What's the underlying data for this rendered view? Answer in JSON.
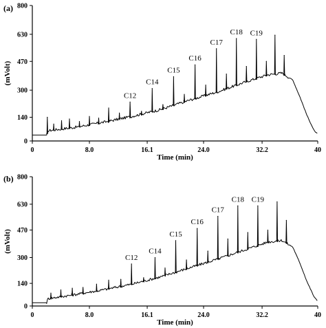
{
  "chart_data": [
    {
      "panel": "(a)",
      "type": "line",
      "xlabel": "Time (min)",
      "ylabel": "(mVolt)",
      "xlim": [
        0,
        40
      ],
      "ylim": [
        0,
        800
      ],
      "xticks": [
        0,
        8.0,
        16.1,
        24.0,
        32.2,
        40
      ],
      "xtick_labels": [
        "0",
        "8.0",
        "16.1",
        "24.0",
        "32.2",
        "40"
      ],
      "yticks": [
        0,
        140,
        300,
        470,
        630,
        800
      ],
      "ytick_labels": [
        "0",
        "140",
        "300",
        "470",
        "630",
        "800"
      ],
      "grid": false,
      "baseline": [
        [
          0,
          35
        ],
        [
          2.0,
          35
        ],
        [
          2.2,
          60
        ],
        [
          6,
          80
        ],
        [
          10,
          110
        ],
        [
          14,
          145
        ],
        [
          18,
          185
        ],
        [
          22,
          240
        ],
        [
          26,
          290
        ],
        [
          30,
          350
        ],
        [
          33,
          390
        ],
        [
          35,
          400
        ],
        [
          36.5,
          360
        ],
        [
          37.5,
          260
        ],
        [
          38.5,
          150
        ],
        [
          39.5,
          60
        ],
        [
          40,
          40
        ]
      ],
      "peaks": [
        {
          "x": 2.1,
          "y": 140
        },
        {
          "x": 3.0,
          "y": 100
        },
        {
          "x": 4.1,
          "y": 120
        },
        {
          "x": 5.2,
          "y": 130
        },
        {
          "x": 6.6,
          "y": 115
        },
        {
          "x": 8.0,
          "y": 145
        },
        {
          "x": 9.3,
          "y": 135
        },
        {
          "x": 10.7,
          "y": 195
        },
        {
          "x": 12.2,
          "y": 165
        },
        {
          "x": 13.7,
          "y": 230
        },
        {
          "x": 15.3,
          "y": 175
        },
        {
          "x": 16.8,
          "y": 310
        },
        {
          "x": 18.3,
          "y": 215
        },
        {
          "x": 19.8,
          "y": 380
        },
        {
          "x": 21.3,
          "y": 275
        },
        {
          "x": 22.8,
          "y": 450
        },
        {
          "x": 24.3,
          "y": 330
        },
        {
          "x": 25.8,
          "y": 545
        },
        {
          "x": 27.2,
          "y": 395
        },
        {
          "x": 28.6,
          "y": 605
        },
        {
          "x": 30.0,
          "y": 440
        },
        {
          "x": 31.4,
          "y": 600
        },
        {
          "x": 32.8,
          "y": 470
        },
        {
          "x": 34.0,
          "y": 625
        },
        {
          "x": 35.3,
          "y": 505
        }
      ],
      "peak_labels": [
        {
          "text": "C12",
          "x": 13.7,
          "y": 230
        },
        {
          "text": "C14",
          "x": 16.8,
          "y": 310
        },
        {
          "text": "C15",
          "x": 19.8,
          "y": 380
        },
        {
          "text": "C16",
          "x": 22.8,
          "y": 450
        },
        {
          "text": "C17",
          "x": 25.8,
          "y": 545
        },
        {
          "text": "C18",
          "x": 28.6,
          "y": 605
        },
        {
          "text": "C19",
          "x": 31.4,
          "y": 600
        }
      ]
    },
    {
      "panel": "(b)",
      "type": "line",
      "xlabel": "Time (min)",
      "ylabel": "(mVolt)",
      "xlim": [
        0,
        40
      ],
      "ylim": [
        0,
        800
      ],
      "xticks": [
        0,
        8.0,
        16.1,
        24.0,
        32.2,
        40
      ],
      "xtick_labels": [
        "0",
        "8.0",
        "16.1",
        "24.0",
        "32.2",
        "40"
      ],
      "yticks": [
        0,
        140,
        300,
        470,
        630,
        800
      ],
      "ytick_labels": [
        "0",
        "140",
        "300",
        "470",
        "630",
        "800"
      ],
      "grid": false,
      "baseline": [
        [
          0,
          20
        ],
        [
          2.0,
          20
        ],
        [
          2.2,
          45
        ],
        [
          6,
          70
        ],
        [
          10,
          100
        ],
        [
          14,
          135
        ],
        [
          18,
          180
        ],
        [
          22,
          235
        ],
        [
          26,
          290
        ],
        [
          30,
          350
        ],
        [
          33,
          395
        ],
        [
          35,
          405
        ],
        [
          36.5,
          365
        ],
        [
          37.5,
          265
        ],
        [
          38.5,
          150
        ],
        [
          39.5,
          55
        ],
        [
          40,
          30
        ]
      ],
      "peaks": [
        {
          "x": 2.6,
          "y": 80
        },
        {
          "x": 4.0,
          "y": 100
        },
        {
          "x": 5.6,
          "y": 110
        },
        {
          "x": 7.1,
          "y": 115
        },
        {
          "x": 9.0,
          "y": 135
        },
        {
          "x": 10.7,
          "y": 160
        },
        {
          "x": 12.4,
          "y": 165
        },
        {
          "x": 13.9,
          "y": 260
        },
        {
          "x": 15.6,
          "y": 175
        },
        {
          "x": 17.2,
          "y": 300
        },
        {
          "x": 18.6,
          "y": 235
        },
        {
          "x": 20.1,
          "y": 405
        },
        {
          "x": 21.6,
          "y": 285
        },
        {
          "x": 23.1,
          "y": 480
        },
        {
          "x": 24.6,
          "y": 340
        },
        {
          "x": 26.0,
          "y": 555
        },
        {
          "x": 27.4,
          "y": 415
        },
        {
          "x": 28.8,
          "y": 620
        },
        {
          "x": 30.2,
          "y": 455
        },
        {
          "x": 31.6,
          "y": 620
        },
        {
          "x": 33.0,
          "y": 470
        },
        {
          "x": 34.3,
          "y": 645
        },
        {
          "x": 35.6,
          "y": 530
        }
      ],
      "peak_labels": [
        {
          "text": "C12",
          "x": 13.9,
          "y": 260
        },
        {
          "text": "C14",
          "x": 17.2,
          "y": 300
        },
        {
          "text": "C15",
          "x": 20.1,
          "y": 405
        },
        {
          "text": "C16",
          "x": 23.1,
          "y": 480
        },
        {
          "text": "C17",
          "x": 26.0,
          "y": 555
        },
        {
          "text": "C18",
          "x": 28.8,
          "y": 620
        },
        {
          "text": "C19",
          "x": 31.6,
          "y": 620
        }
      ]
    }
  ]
}
